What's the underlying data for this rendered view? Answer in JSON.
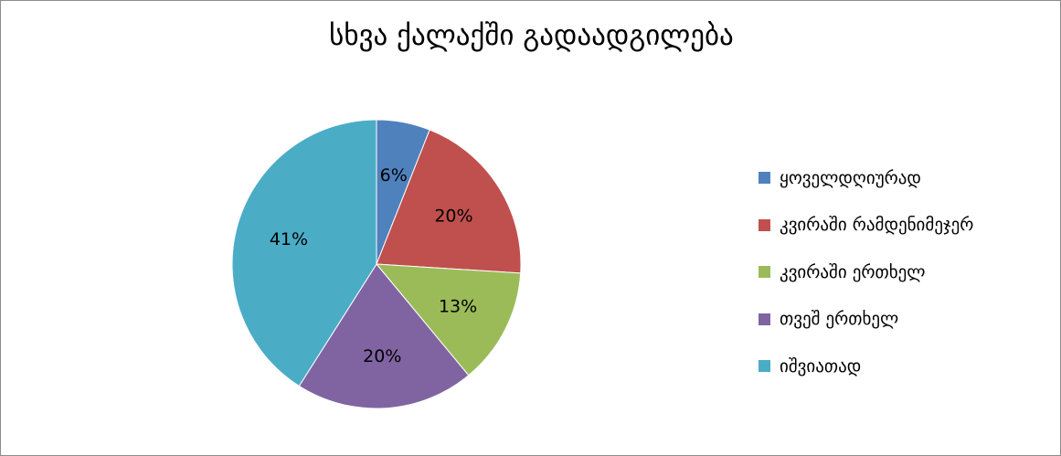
{
  "chart_data": {
    "type": "pie",
    "title": "სხვა ქალაქში გადაადგილება",
    "categories": [
      "ყოველდღიურად",
      "კვირაში რამდენიმეჯერ",
      "კვირაში ერთხელ",
      "თვეშ ერთხელ",
      "იშვიათად"
    ],
    "values": [
      6,
      20,
      13,
      20,
      41
    ],
    "labels": [
      "6%",
      "20%",
      "13%",
      "20%",
      "41%"
    ],
    "colors": [
      "#4f81bd",
      "#c0504d",
      "#9bbb59",
      "#8064a2",
      "#4bacc6"
    ],
    "legend_position": "right"
  }
}
